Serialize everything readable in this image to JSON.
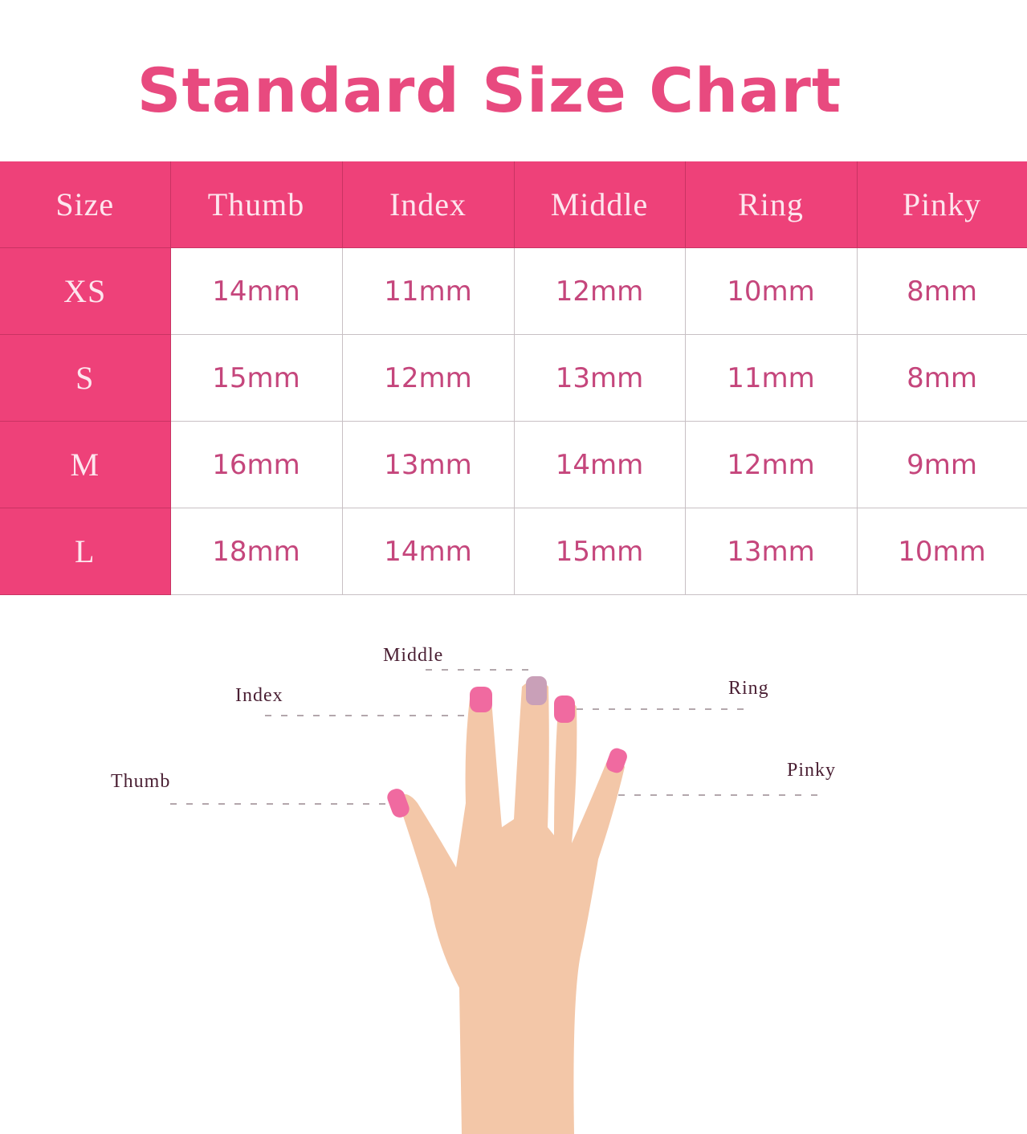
{
  "title": "Standard Size Chart",
  "table": {
    "headers": [
      "Size",
      "Thumb",
      "Index",
      "Middle",
      "Ring",
      "Pinky"
    ],
    "rows": [
      {
        "size": "XS",
        "values": [
          "14mm",
          "11mm",
          "12mm",
          "10mm",
          "8mm"
        ]
      },
      {
        "size": "S",
        "values": [
          "15mm",
          "12mm",
          "13mm",
          "11mm",
          "8mm"
        ]
      },
      {
        "size": "M",
        "values": [
          "16mm",
          "13mm",
          "14mm",
          "12mm",
          "9mm"
        ]
      },
      {
        "size": "L",
        "values": [
          "18mm",
          "14mm",
          "15mm",
          "13mm",
          "10mm"
        ]
      }
    ]
  },
  "diagram": {
    "labels": {
      "middle": "Middle",
      "index": "Index",
      "ring": "Ring",
      "thumb": "Thumb",
      "pinky": "Pinky"
    }
  },
  "colors": {
    "accent": "#ee4179",
    "title": "#e84a7f",
    "nail": "#f06aa0"
  }
}
